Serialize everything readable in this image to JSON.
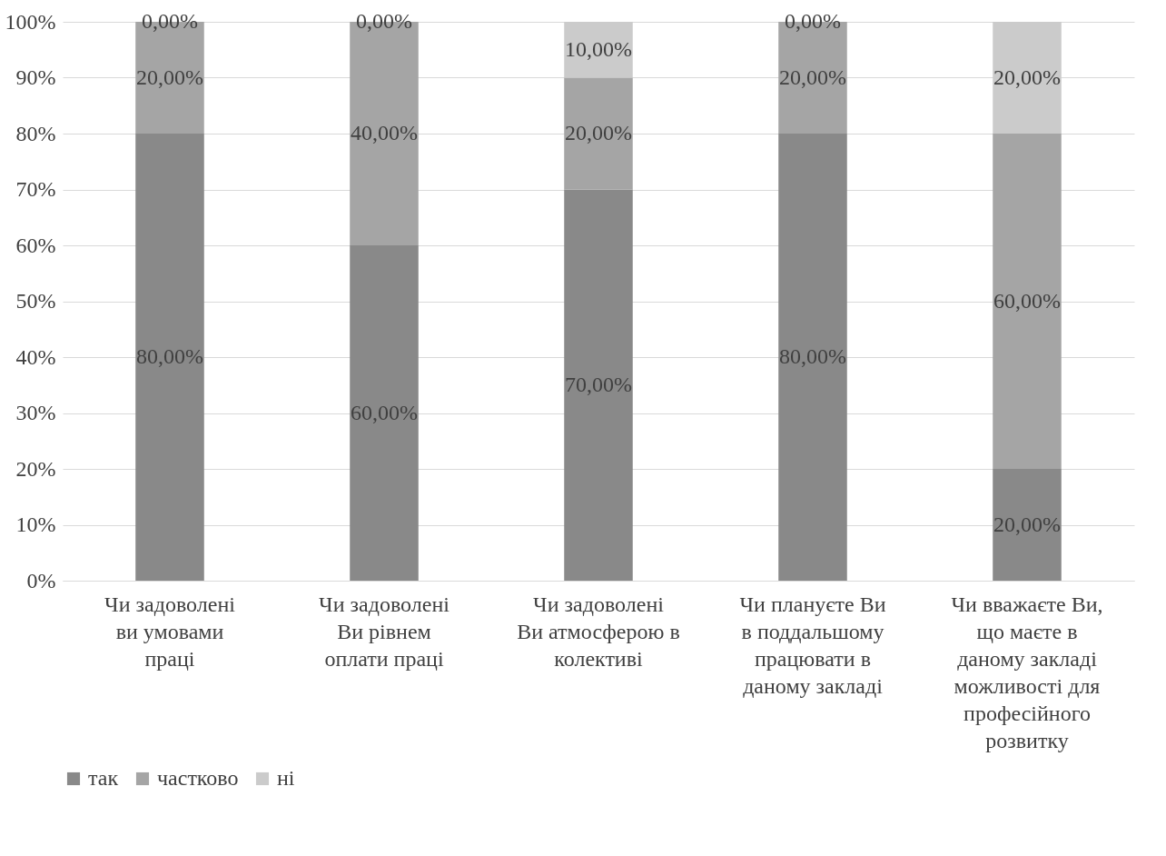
{
  "chart_data": {
    "type": "bar",
    "stacked": true,
    "categories": [
      "Чи задоволені ви умовами праці",
      "Чи задоволені Ви рівнем оплати праці",
      "Чи задоволені Ви атмосферою в колективі",
      "Чи плануєте Ви в поддальшому працювати в даному закладі",
      "Чи вважаєте Ви, що маєте в даному закладі можливості для професійного розвитку"
    ],
    "series": [
      {
        "name": "так",
        "color": "#898989",
        "values": [
          80,
          60,
          70,
          80,
          20
        ],
        "value_labels": [
          "80,00%",
          "60,00%",
          "70,00%",
          "80,00%",
          "20,00%"
        ]
      },
      {
        "name": "частково",
        "color": "#a5a5a5",
        "values": [
          20,
          40,
          20,
          20,
          60
        ],
        "value_labels": [
          "20,00%",
          "40,00%",
          "20,00%",
          "20,00%",
          "60,00%"
        ]
      },
      {
        "name": "ні",
        "color": "#cbcbcb",
        "values": [
          0,
          0,
          10,
          0,
          20
        ],
        "value_labels": [
          "0,00%",
          "0,00%",
          "10,00%",
          "0,00%",
          "20,00%"
        ]
      }
    ],
    "ylim": [
      0,
      100
    ],
    "yticks": [
      {
        "value": 0,
        "label": "0%"
      },
      {
        "value": 10,
        "label": "10%"
      },
      {
        "value": 20,
        "label": "20%"
      },
      {
        "value": 30,
        "label": "30%"
      },
      {
        "value": 40,
        "label": "40%"
      },
      {
        "value": 50,
        "label": "50%"
      },
      {
        "value": 60,
        "label": "60%"
      },
      {
        "value": 70,
        "label": "70%"
      },
      {
        "value": 80,
        "label": "80%"
      },
      {
        "value": 90,
        "label": "90%"
      },
      {
        "value": 100,
        "label": "100%"
      }
    ],
    "grid": true,
    "legend": "bottom"
  }
}
